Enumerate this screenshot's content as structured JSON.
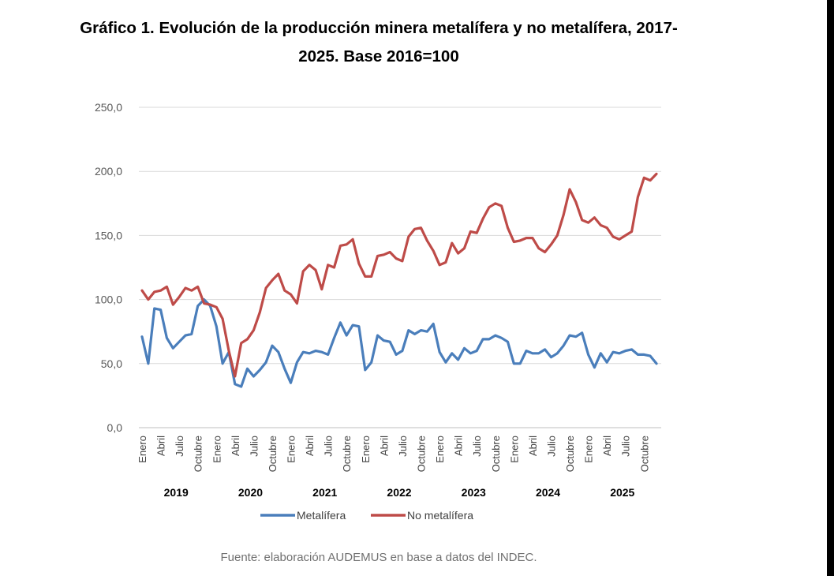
{
  "title": {
    "line1": "Gráfico 1. Evolución de la producción minera metalífera y no metalífera, 2017-",
    "line2": "2025. Base 2016=100"
  },
  "source": "Fuente: elaboración AUDEMUS en base a datos del INDEC.",
  "chart_data": {
    "type": "line",
    "title": "Gráfico 1. Evolución de la producción minera metalífera y no metalífera, 2017-2025. Base 2016=100",
    "xlabel": "",
    "ylabel": "",
    "ylim": [
      0,
      250
    ],
    "y_ticks": [
      "0,0",
      "50,0",
      "100,0",
      "150,0",
      "200,0",
      "250,0"
    ],
    "grid": "horizontal",
    "legend_position": "bottom",
    "month_tick_labels": [
      "Enero",
      "Abril",
      "Julio",
      "Octubre"
    ],
    "years": [
      "2019",
      "2020",
      "2021",
      "2022",
      "2023",
      "2024",
      "2025"
    ],
    "x": [
      "2019-01",
      "2019-02",
      "2019-03",
      "2019-04",
      "2019-05",
      "2019-06",
      "2019-07",
      "2019-08",
      "2019-09",
      "2019-10",
      "2019-11",
      "2019-12",
      "2020-01",
      "2020-02",
      "2020-03",
      "2020-04",
      "2020-05",
      "2020-06",
      "2020-07",
      "2020-08",
      "2020-09",
      "2020-10",
      "2020-11",
      "2020-12",
      "2021-01",
      "2021-02",
      "2021-03",
      "2021-04",
      "2021-05",
      "2021-06",
      "2021-07",
      "2021-08",
      "2021-09",
      "2021-10",
      "2021-11",
      "2021-12",
      "2022-01",
      "2022-02",
      "2022-03",
      "2022-04",
      "2022-05",
      "2022-06",
      "2022-07",
      "2022-08",
      "2022-09",
      "2022-10",
      "2022-11",
      "2022-12",
      "2023-01",
      "2023-02",
      "2023-03",
      "2023-04",
      "2023-05",
      "2023-06",
      "2023-07",
      "2023-08",
      "2023-09",
      "2023-10",
      "2023-11",
      "2023-12",
      "2024-01",
      "2024-02",
      "2024-03",
      "2024-04",
      "2024-05",
      "2024-06",
      "2024-07",
      "2024-08",
      "2024-09",
      "2024-10",
      "2024-11",
      "2024-12",
      "2025-01",
      "2025-02",
      "2025-03",
      "2025-04",
      "2025-05",
      "2025-06",
      "2025-07",
      "2025-08",
      "2025-09",
      "2025-10",
      "2025-11",
      "2025-12"
    ],
    "series": [
      {
        "name": "Metalífera",
        "color": "#4a7ebb",
        "values": [
          71,
          50,
          93,
          92,
          70,
          62,
          67,
          72,
          73,
          95,
          100,
          95,
          79,
          50,
          59,
          34,
          32,
          46,
          40,
          45,
          51,
          64,
          59,
          46,
          35,
          51,
          59,
          58,
          60,
          59,
          57,
          70,
          82,
          72,
          80,
          79,
          45,
          51,
          72,
          68,
          67,
          57,
          60,
          76,
          73,
          76,
          75,
          81,
          59,
          51,
          58,
          53,
          62,
          58,
          60,
          69,
          69,
          72,
          70,
          67,
          50,
          50,
          60,
          58,
          58,
          61,
          55,
          58,
          64,
          72,
          71,
          74,
          57,
          47,
          58,
          51,
          59,
          58,
          60,
          61,
          57,
          57,
          56,
          50
        ]
      },
      {
        "name": "No metalífera",
        "color": "#be4b48",
        "values": [
          107,
          100,
          106,
          107,
          110,
          96,
          102,
          109,
          107,
          110,
          97,
          96,
          94,
          85,
          60,
          40,
          66,
          69,
          76,
          90,
          109,
          115,
          120,
          107,
          104,
          97,
          122,
          127,
          123,
          108,
          127,
          125,
          142,
          143,
          147,
          128,
          118,
          118,
          134,
          135,
          137,
          132,
          130,
          149,
          155,
          156,
          146,
          138,
          127,
          129,
          144,
          136,
          140,
          153,
          152,
          163,
          172,
          175,
          173,
          156,
          145,
          146,
          148,
          148,
          140,
          137,
          143,
          150,
          166,
          186,
          176,
          162,
          160,
          164,
          158,
          156,
          149,
          147,
          150,
          153,
          180,
          195,
          193,
          198
        ]
      }
    ]
  }
}
